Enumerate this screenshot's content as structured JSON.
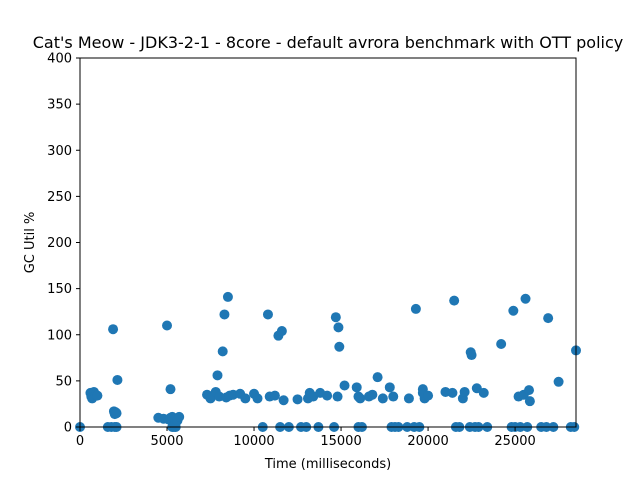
{
  "chart_data": {
    "type": "scatter",
    "title": "Cat's Meow - JDK3-2-1 - 8core -  default avrora benchmark with OTT policy",
    "xlabel": "Time (milliseconds)",
    "ylabel": "GC Util %",
    "xlim": [
      0,
      28500
    ],
    "ylim": [
      0,
      400
    ],
    "xticks": [
      0,
      5000,
      10000,
      15000,
      20000,
      25000
    ],
    "yticks": [
      0,
      50,
      100,
      150,
      200,
      250,
      300,
      350,
      400
    ],
    "xtick_labels": [
      "0",
      "5000",
      "10000",
      "15000",
      "20000",
      "25000"
    ],
    "ytick_labels": [
      "0",
      "50",
      "100",
      "150",
      "200",
      "250",
      "300",
      "350",
      "400"
    ],
    "grid": false,
    "marker_color": "#1f77b4",
    "points": [
      {
        "x": 0,
        "y": 0
      },
      {
        "x": 600,
        "y": 37
      },
      {
        "x": 650,
        "y": 33
      },
      {
        "x": 700,
        "y": 31
      },
      {
        "x": 800,
        "y": 38
      },
      {
        "x": 900,
        "y": 35
      },
      {
        "x": 1000,
        "y": 34
      },
      {
        "x": 1600,
        "y": 0
      },
      {
        "x": 1800,
        "y": 0
      },
      {
        "x": 1900,
        "y": 106
      },
      {
        "x": 1950,
        "y": 17
      },
      {
        "x": 2000,
        "y": 14
      },
      {
        "x": 2050,
        "y": 16
      },
      {
        "x": 2100,
        "y": 15
      },
      {
        "x": 2000,
        "y": 0
      },
      {
        "x": 2100,
        "y": 0
      },
      {
        "x": 2150,
        "y": 51
      },
      {
        "x": 4500,
        "y": 10
      },
      {
        "x": 4800,
        "y": 9
      },
      {
        "x": 5000,
        "y": 110
      },
      {
        "x": 5100,
        "y": 8
      },
      {
        "x": 5200,
        "y": 41
      },
      {
        "x": 5200,
        "y": 10
      },
      {
        "x": 5300,
        "y": 11
      },
      {
        "x": 5300,
        "y": 0
      },
      {
        "x": 5400,
        "y": 0
      },
      {
        "x": 5500,
        "y": 0
      },
      {
        "x": 5600,
        "y": 7
      },
      {
        "x": 5700,
        "y": 11
      },
      {
        "x": 7300,
        "y": 35
      },
      {
        "x": 7500,
        "y": 31
      },
      {
        "x": 7800,
        "y": 38
      },
      {
        "x": 7900,
        "y": 56
      },
      {
        "x": 8000,
        "y": 33
      },
      {
        "x": 8200,
        "y": 82
      },
      {
        "x": 8300,
        "y": 122
      },
      {
        "x": 8400,
        "y": 32
      },
      {
        "x": 8500,
        "y": 141
      },
      {
        "x": 8600,
        "y": 34
      },
      {
        "x": 8800,
        "y": 35
      },
      {
        "x": 9200,
        "y": 36
      },
      {
        "x": 9500,
        "y": 31
      },
      {
        "x": 10000,
        "y": 36
      },
      {
        "x": 10200,
        "y": 31
      },
      {
        "x": 10500,
        "y": 0
      },
      {
        "x": 10800,
        "y": 122
      },
      {
        "x": 10900,
        "y": 33
      },
      {
        "x": 11200,
        "y": 34
      },
      {
        "x": 11400,
        "y": 99
      },
      {
        "x": 11500,
        "y": 0
      },
      {
        "x": 11600,
        "y": 104
      },
      {
        "x": 11700,
        "y": 29
      },
      {
        "x": 12000,
        "y": 0
      },
      {
        "x": 12500,
        "y": 30
      },
      {
        "x": 12700,
        "y": 0
      },
      {
        "x": 13000,
        "y": 0
      },
      {
        "x": 13100,
        "y": 31
      },
      {
        "x": 13200,
        "y": 37
      },
      {
        "x": 13400,
        "y": 33
      },
      {
        "x": 13700,
        "y": 0
      },
      {
        "x": 13800,
        "y": 37
      },
      {
        "x": 14200,
        "y": 34
      },
      {
        "x": 14600,
        "y": 0
      },
      {
        "x": 14700,
        "y": 119
      },
      {
        "x": 14800,
        "y": 33
      },
      {
        "x": 14850,
        "y": 108
      },
      {
        "x": 14900,
        "y": 87
      },
      {
        "x": 15200,
        "y": 45
      },
      {
        "x": 15900,
        "y": 43
      },
      {
        "x": 16000,
        "y": 33
      },
      {
        "x": 16000,
        "y": 0
      },
      {
        "x": 16100,
        "y": 31
      },
      {
        "x": 16200,
        "y": 0
      },
      {
        "x": 16600,
        "y": 33
      },
      {
        "x": 16800,
        "y": 35
      },
      {
        "x": 17100,
        "y": 54
      },
      {
        "x": 17400,
        "y": 31
      },
      {
        "x": 17800,
        "y": 43
      },
      {
        "x": 17900,
        "y": 0
      },
      {
        "x": 18000,
        "y": 33
      },
      {
        "x": 18100,
        "y": 0
      },
      {
        "x": 18300,
        "y": 0
      },
      {
        "x": 18800,
        "y": 0
      },
      {
        "x": 18900,
        "y": 31
      },
      {
        "x": 19200,
        "y": 0
      },
      {
        "x": 19300,
        "y": 128
      },
      {
        "x": 19500,
        "y": 0
      },
      {
        "x": 19700,
        "y": 41
      },
      {
        "x": 19800,
        "y": 31
      },
      {
        "x": 19700,
        "y": 37
      },
      {
        "x": 20000,
        "y": 34
      },
      {
        "x": 21000,
        "y": 38
      },
      {
        "x": 21400,
        "y": 37
      },
      {
        "x": 21500,
        "y": 137
      },
      {
        "x": 21600,
        "y": 0
      },
      {
        "x": 21800,
        "y": 0
      },
      {
        "x": 22000,
        "y": 31
      },
      {
        "x": 22100,
        "y": 38
      },
      {
        "x": 22400,
        "y": 0
      },
      {
        "x": 22450,
        "y": 81
      },
      {
        "x": 22500,
        "y": 78
      },
      {
        "x": 22700,
        "y": 0
      },
      {
        "x": 22800,
        "y": 42
      },
      {
        "x": 22900,
        "y": 0
      },
      {
        "x": 23200,
        "y": 37
      },
      {
        "x": 23400,
        "y": 0
      },
      {
        "x": 24200,
        "y": 90
      },
      {
        "x": 24800,
        "y": 0
      },
      {
        "x": 24900,
        "y": 126
      },
      {
        "x": 25000,
        "y": 0
      },
      {
        "x": 25200,
        "y": 33
      },
      {
        "x": 25300,
        "y": 0
      },
      {
        "x": 25500,
        "y": 35
      },
      {
        "x": 25600,
        "y": 139
      },
      {
        "x": 25700,
        "y": 0
      },
      {
        "x": 25800,
        "y": 40
      },
      {
        "x": 25850,
        "y": 28
      },
      {
        "x": 26500,
        "y": 0
      },
      {
        "x": 26800,
        "y": 0
      },
      {
        "x": 26900,
        "y": 118
      },
      {
        "x": 27200,
        "y": 0
      },
      {
        "x": 27500,
        "y": 49
      },
      {
        "x": 28200,
        "y": 0
      },
      {
        "x": 28400,
        "y": 0
      },
      {
        "x": 28500,
        "y": 83
      }
    ]
  }
}
